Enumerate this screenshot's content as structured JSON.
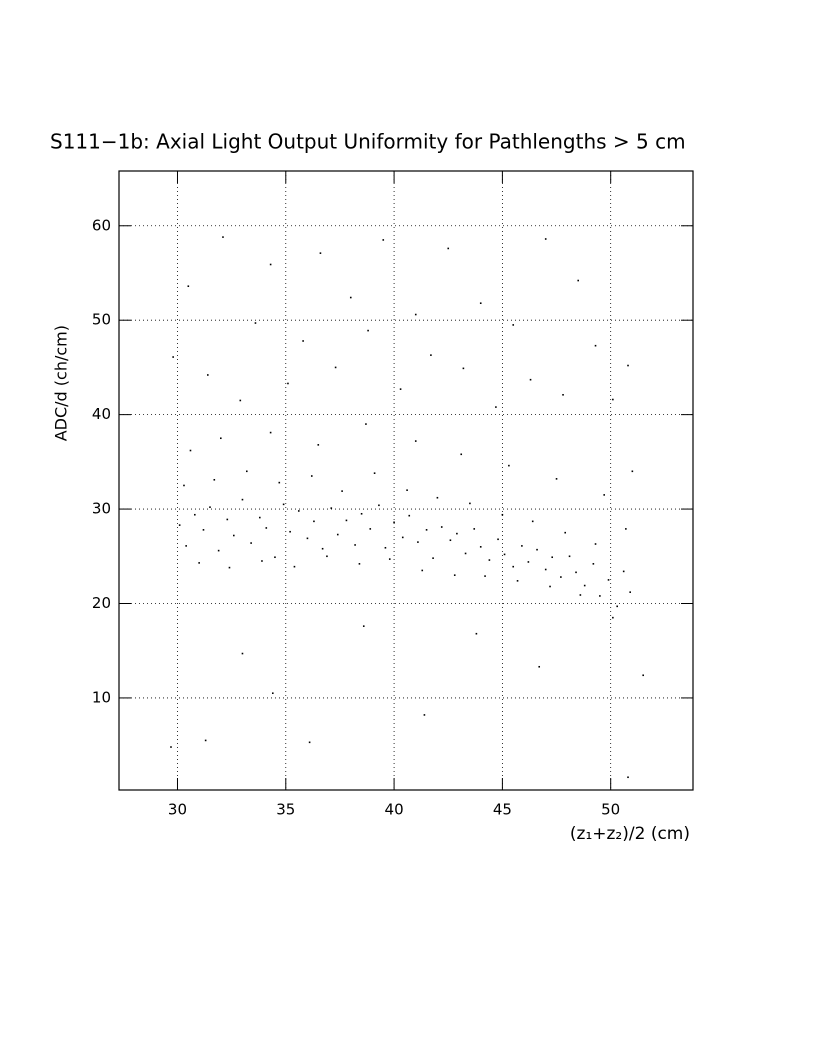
{
  "chart_data": {
    "type": "scatter",
    "title": "S111−1b: Axial Light Output Uniformity for Pathlengths > 5 cm",
    "x_label": "(z₁+z₂)/2 (cm)",
    "y_label": "ADC/d (ch/cm)",
    "xlim": [
      27.3,
      53.8
    ],
    "ylim": [
      0.25,
      65.8
    ],
    "xticks": [
      30,
      35,
      40,
      45,
      50
    ],
    "yticks": [
      10,
      20,
      30,
      40,
      50,
      60
    ],
    "grid": true,
    "color": "#000000",
    "x": [
      30.1,
      30.4,
      30.8,
      31.2,
      31.5,
      31.9,
      32.3,
      32.6,
      33.0,
      33.4,
      33.8,
      34.1,
      34.5,
      34.9,
      35.2,
      35.6,
      36.0,
      36.3,
      36.7,
      37.1,
      37.4,
      37.8,
      38.2,
      38.5,
      38.9,
      39.3,
      39.6,
      40.0,
      40.4,
      40.7,
      41.1,
      41.5,
      41.8,
      42.2,
      42.6,
      42.9,
      43.3,
      43.7,
      44.0,
      44.4,
      44.8,
      45.1,
      45.5,
      45.9,
      46.2,
      46.6,
      47.0,
      47.3,
      47.7,
      48.1,
      48.4,
      48.8,
      49.2,
      49.5,
      49.9,
      50.3,
      50.6,
      50.9,
      30.3,
      31.0,
      31.7,
      32.4,
      33.2,
      33.9,
      34.7,
      35.4,
      36.2,
      36.9,
      37.6,
      38.4,
      39.1,
      39.8,
      40.6,
      41.3,
      42.0,
      42.8,
      43.5,
      44.2,
      45.0,
      45.7,
      46.4,
      47.2,
      47.9,
      48.6,
      49.3,
      50.1,
      50.7,
      30.6,
      32.0,
      34.3,
      36.5,
      38.7,
      41.0,
      43.1,
      45.3,
      47.5,
      49.7,
      51.0,
      29.8,
      30.5,
      31.4,
      32.1,
      32.9,
      33.6,
      34.3,
      35.1,
      35.8,
      36.6,
      37.3,
      38.0,
      38.8,
      39.5,
      40.3,
      41.0,
      41.7,
      42.5,
      43.2,
      44.0,
      44.7,
      45.5,
      46.3,
      47.0,
      47.8,
      48.5,
      49.3,
      50.1,
      50.8,
      51.5,
      29.7,
      31.3,
      33.0,
      34.4,
      36.1,
      38.6,
      41.4,
      43.8,
      46.7,
      50.8
    ],
    "values": [
      28.3,
      26.1,
      29.4,
      27.8,
      30.2,
      25.6,
      28.9,
      27.2,
      31.0,
      26.4,
      29.1,
      28.0,
      24.9,
      30.5,
      27.6,
      29.8,
      26.9,
      28.7,
      25.8,
      30.1,
      27.3,
      28.8,
      26.2,
      29.5,
      27.9,
      30.4,
      25.9,
      28.6,
      27.0,
      29.3,
      26.5,
      27.8,
      24.8,
      28.1,
      26.7,
      27.4,
      25.3,
      27.9,
      26.0,
      24.6,
      26.8,
      25.2,
      23.9,
      26.1,
      24.4,
      25.7,
      23.6,
      24.9,
      22.8,
      25.0,
      23.3,
      21.9,
      24.2,
      20.8,
      22.5,
      19.7,
      23.4,
      21.2,
      32.5,
      24.3,
      33.1,
      23.8,
      34.0,
      24.5,
      32.8,
      23.9,
      33.5,
      25.0,
      31.9,
      24.2,
      33.8,
      24.7,
      32.0,
      23.5,
      31.2,
      23.0,
      30.6,
      22.9,
      29.4,
      22.4,
      28.7,
      21.8,
      27.5,
      20.9,
      26.3,
      18.5,
      27.9,
      36.2,
      37.5,
      38.1,
      36.8,
      39.0,
      37.2,
      35.8,
      34.6,
      33.2,
      31.5,
      34.0,
      46.1,
      53.6,
      44.2,
      58.8,
      41.5,
      49.7,
      55.9,
      43.3,
      47.8,
      57.1,
      45.0,
      52.4,
      48.9,
      58.5,
      42.7,
      50.6,
      46.3,
      57.6,
      44.9,
      51.8,
      40.8,
      49.5,
      43.7,
      58.6,
      42.1,
      54.2,
      47.3,
      41.6,
      45.2,
      12.4,
      4.8,
      5.5,
      14.7,
      10.5,
      5.3,
      17.6,
      8.2,
      16.8,
      13.3,
      1.6
    ]
  }
}
